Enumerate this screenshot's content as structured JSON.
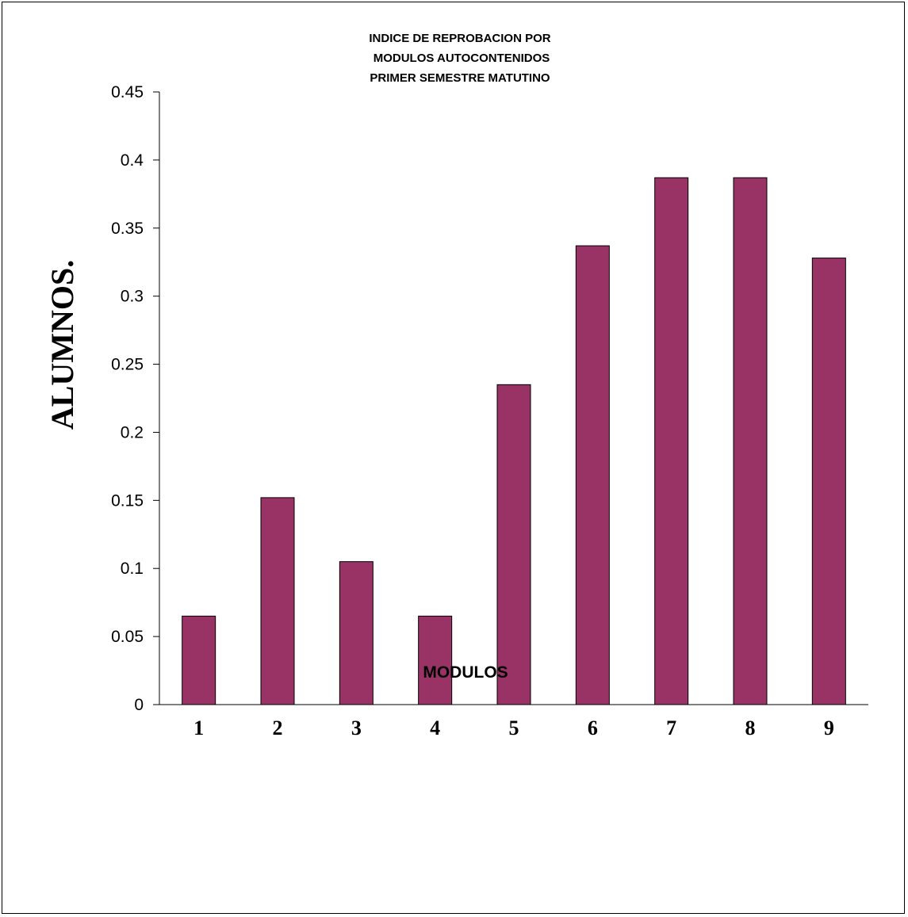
{
  "chart_data": {
    "type": "bar",
    "title_lines": [
      "INDICE DE REPROBACION POR",
      "MODULOS AUTOCONTENIDOS",
      "PRIMER SEMESTRE MATUTINO"
    ],
    "xlabel": "MODULOS",
    "ylabel": "ALUMNOS.",
    "categories": [
      "1",
      "2",
      "3",
      "4",
      "5",
      "6",
      "7",
      "8",
      "9"
    ],
    "values": [
      0.065,
      0.152,
      0.105,
      0.065,
      0.235,
      0.337,
      0.387,
      0.387,
      0.328
    ],
    "ylim": [
      0,
      0.45
    ],
    "yticks": [
      "0",
      "0.05",
      "0.1",
      "0.15",
      "0.2",
      "0.25",
      "0.3",
      "0.35",
      "0.4",
      "0.45"
    ],
    "bar_color": "#993366",
    "grid": false,
    "legend": "none"
  }
}
